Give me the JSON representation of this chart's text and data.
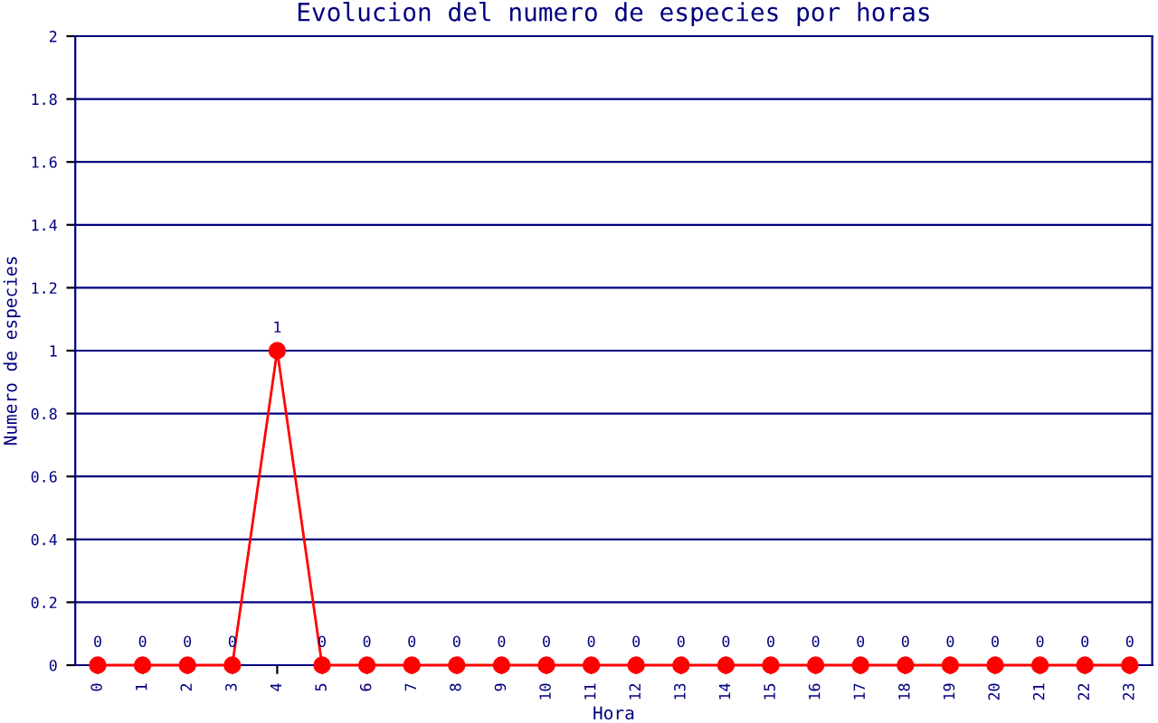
{
  "chart_data": {
    "type": "line",
    "title": "Evolucion del numero de especies por horas",
    "xlabel": "Hora",
    "ylabel": "Numero de especies",
    "categories": [
      "0",
      "1",
      "2",
      "3",
      "4",
      "5",
      "6",
      "7",
      "8",
      "9",
      "10",
      "11",
      "12",
      "13",
      "14",
      "15",
      "16",
      "17",
      "18",
      "19",
      "20",
      "21",
      "22",
      "23"
    ],
    "series": [
      {
        "color": "#ff0000",
        "values": [
          0,
          0,
          0,
          0,
          1,
          0,
          0,
          0,
          0,
          0,
          0,
          0,
          0,
          0,
          0,
          0,
          0,
          0,
          0,
          0,
          0,
          0,
          0,
          0
        ]
      }
    ],
    "ylim": [
      0,
      2
    ],
    "yticks": [
      0,
      0.2,
      0.4,
      0.6,
      0.8,
      1,
      1.2,
      1.4,
      1.6,
      1.8,
      2
    ],
    "grid": "y",
    "marker": "circle",
    "line_style": "solid",
    "data_labels": true,
    "legend": false
  }
}
